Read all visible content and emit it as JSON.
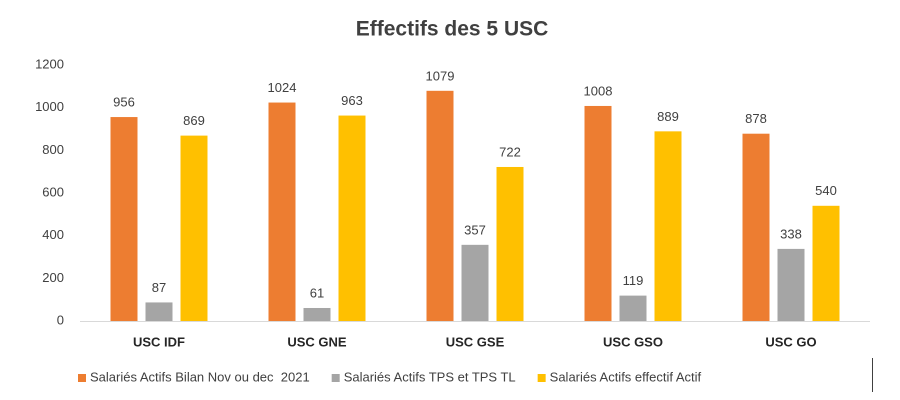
{
  "chart_data": {
    "type": "bar",
    "title": "Effectifs des 5 USC",
    "categories": [
      "USC IDF",
      "USC GNE",
      "USC GSE",
      "USC GSO",
      "USC GO"
    ],
    "series": [
      {
        "name": "Salariés Actifs Bilan Nov ou dec  2021",
        "color": "#ed7d31",
        "values": [
          956,
          1024,
          1079,
          1008,
          878
        ]
      },
      {
        "name": "Salariés Actifs TPS et TPS TL",
        "color": "#a5a5a5",
        "values": [
          87,
          61,
          357,
          119,
          338
        ]
      },
      {
        "name": "Salariés Actifs effectif Actif",
        "color": "#ffc000",
        "values": [
          869,
          963,
          722,
          889,
          540
        ]
      }
    ],
    "ylim": [
      0,
      1200
    ],
    "yticks": [
      0,
      200,
      400,
      600,
      800,
      1000,
      1200
    ],
    "grid": false,
    "legend": "bottom"
  }
}
